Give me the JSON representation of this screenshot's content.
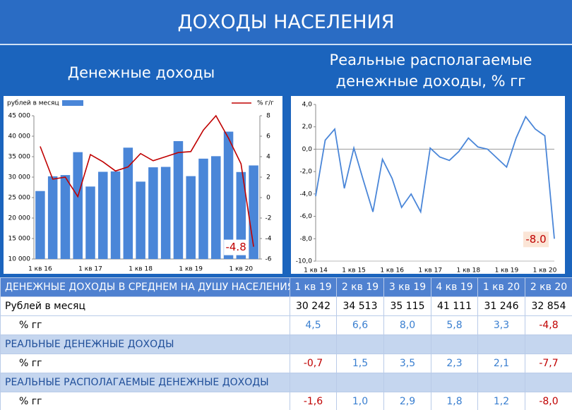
{
  "header": {
    "title": "ДОХОДЫ НАСЕЛЕНИЯ"
  },
  "subtitles": {
    "left": "Денежные доходы",
    "right": "Реальные располагаемые денежные доходы, % гг"
  },
  "chart_data": [
    {
      "type": "bar-line",
      "categories": [
        "1 кв 16",
        null,
        null,
        null,
        "1 кв 17",
        null,
        null,
        null,
        "1 кв 18",
        null,
        null,
        null,
        "1 кв 19",
        null,
        null,
        null,
        "1 кв 20",
        null
      ],
      "series": [
        {
          "name": "рублей в месяц",
          "type": "bar",
          "color": "#4a86d8",
          "values": [
            26600,
            30200,
            30500,
            36100,
            27700,
            31300,
            31400,
            37200,
            28900,
            32400,
            32500,
            38800,
            30242,
            34513,
            35115,
            41111,
            31246,
            32854
          ]
        },
        {
          "name": "% г/г",
          "type": "line",
          "axis": "y2",
          "color": "#c00000",
          "values": [
            5.0,
            1.8,
            2.0,
            0.1,
            4.2,
            3.5,
            2.6,
            3.0,
            4.3,
            3.6,
            4.0,
            4.4,
            4.5,
            6.6,
            8.0,
            5.8,
            3.3,
            -4.8
          ]
        }
      ],
      "ylim": [
        10000,
        45000
      ],
      "yticks": [
        {
          "value": 10000,
          "label": "10 000"
        },
        {
          "value": 15000,
          "label": "15 000"
        },
        {
          "value": 20000,
          "label": "20 000"
        },
        {
          "value": 25000,
          "label": "25 000"
        },
        {
          "value": 30000,
          "label": "30 000"
        },
        {
          "value": 35000,
          "label": "35 000"
        },
        {
          "value": 40000,
          "label": "40 000"
        },
        {
          "value": 45000,
          "label": "45 000"
        }
      ],
      "y2lim": [
        -6,
        8
      ],
      "y2ticks": [
        -6,
        -4,
        -2,
        0,
        2,
        4,
        6,
        8
      ],
      "annotation": "-4.8"
    },
    {
      "type": "line",
      "categories": [
        "1 кв 14",
        null,
        null,
        null,
        "1 кв 15",
        null,
        null,
        null,
        "1 кв 16",
        null,
        null,
        null,
        "1 кв 17",
        null,
        null,
        null,
        "1 кв 18",
        null,
        null,
        null,
        "1 кв 19",
        null,
        null,
        null,
        "1 кв 20",
        null
      ],
      "color": "#4a86d8",
      "values": [
        -4.2,
        0.8,
        1.8,
        -3.5,
        0.1,
        -2.8,
        -5.6,
        -0.9,
        -2.6,
        -5.2,
        -4.0,
        -5.6,
        0.1,
        -0.7,
        -1.0,
        -0.2,
        1.0,
        0.2,
        0.0,
        -0.8,
        -1.6,
        1.0,
        2.9,
        1.8,
        1.2,
        -8.0
      ],
      "ylim": [
        -10,
        4
      ],
      "yticks": [
        {
          "value": -10,
          "label": "-10,0"
        },
        {
          "value": -8,
          "label": "-8,0"
        },
        {
          "value": -6,
          "label": "-6,0"
        },
        {
          "value": -4,
          "label": "-4,0"
        },
        {
          "value": -2,
          "label": "-2,0"
        },
        {
          "value": 0,
          "label": "0,0"
        },
        {
          "value": 2,
          "label": "2,0"
        },
        {
          "value": 4,
          "label": "4,0"
        }
      ],
      "annotation": "-8.0"
    }
  ],
  "table": {
    "header": [
      "ДЕНЕЖНЫЕ ДОХОДЫ В СРЕДНЕМ НА ДУШУ НАСЕЛЕНИЯ",
      "1 кв 19",
      "2 кв 19",
      "3 кв 19",
      "4 кв 19",
      "1 кв 20",
      "2 кв 20"
    ],
    "rows": [
      [
        "Рублей в месяц",
        "30 242",
        "34 513",
        "35 115",
        "41 111",
        "31 246",
        "32 854"
      ],
      [
        "% гг",
        "4,5",
        "6,6",
        "8,0",
        "5,8",
        "3,3",
        "-4,8"
      ],
      [
        "РЕАЛЬНЫЕ ДЕНЕЖНЫЕ ДОХОДЫ"
      ],
      [
        "% гг",
        "-0,7",
        "1,5",
        "3,5",
        "2,3",
        "2,1",
        "-7,7"
      ],
      [
        "РЕАЛЬНЫЕ РАСПОЛАГАЕМЫЕ ДЕНЕЖНЫЕ ДОХОДЫ"
      ],
      [
        "% гг",
        "-1,6",
        "1,0",
        "2,9",
        "1,8",
        "1,2",
        "-8,0"
      ]
    ]
  }
}
